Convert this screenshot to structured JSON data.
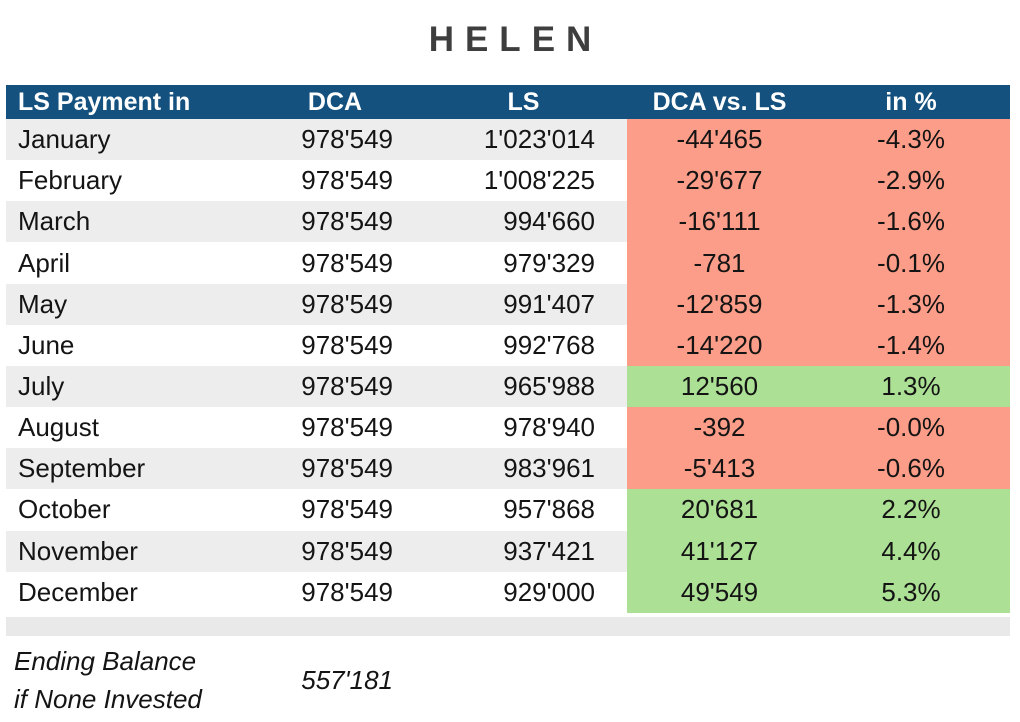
{
  "title": "HELEN",
  "table": {
    "headers": [
      "LS Payment in",
      "DCA",
      "LS",
      "DCA vs. LS",
      "in %"
    ],
    "rows": [
      {
        "month": "January",
        "dca": "978'549",
        "ls": "1'023'014",
        "diff": "-44'465",
        "pct": "-4.3%",
        "status": "negative"
      },
      {
        "month": "February",
        "dca": "978'549",
        "ls": "1'008'225",
        "diff": "-29'677",
        "pct": "-2.9%",
        "status": "negative"
      },
      {
        "month": "March",
        "dca": "978'549",
        "ls": "994'660",
        "diff": "-16'111",
        "pct": "-1.6%",
        "status": "negative"
      },
      {
        "month": "April",
        "dca": "978'549",
        "ls": "979'329",
        "diff": "-781",
        "pct": "-0.1%",
        "status": "negative"
      },
      {
        "month": "May",
        "dca": "978'549",
        "ls": "991'407",
        "diff": "-12'859",
        "pct": "-1.3%",
        "status": "negative"
      },
      {
        "month": "June",
        "dca": "978'549",
        "ls": "992'768",
        "diff": "-14'220",
        "pct": "-1.4%",
        "status": "negative"
      },
      {
        "month": "July",
        "dca": "978'549",
        "ls": "965'988",
        "diff": "12'560",
        "pct": "1.3%",
        "status": "positive"
      },
      {
        "month": "August",
        "dca": "978'549",
        "ls": "978'940",
        "diff": "-392",
        "pct": "-0.0%",
        "status": "negative"
      },
      {
        "month": "September",
        "dca": "978'549",
        "ls": "983'961",
        "diff": "-5'413",
        "pct": "-0.6%",
        "status": "negative"
      },
      {
        "month": "October",
        "dca": "978'549",
        "ls": "957'868",
        "diff": "20'681",
        "pct": "2.2%",
        "status": "positive"
      },
      {
        "month": "November",
        "dca": "978'549",
        "ls": "937'421",
        "diff": "41'127",
        "pct": "4.4%",
        "status": "positive"
      },
      {
        "month": "December",
        "dca": "978'549",
        "ls": "929'000",
        "diff": "49'549",
        "pct": "5.3%",
        "status": "positive"
      }
    ]
  },
  "footer": {
    "label_line1": "Ending Balance",
    "label_line2": "if None Invested",
    "value": "557'181"
  },
  "colors": {
    "header_bg": "#14517E",
    "negative_bg": "#FB9D88",
    "positive_bg": "#ACE095",
    "stripe_bg": "#EDEDED",
    "spacer_bg": "#E9E9E9",
    "title_color": "#3E3E3E"
  },
  "chart_data": {
    "type": "table",
    "title": "HELEN",
    "columns": [
      "LS Payment in",
      "DCA",
      "LS",
      "DCA vs. LS",
      "in %"
    ],
    "rows": [
      [
        "January",
        978549,
        1023014,
        -44465,
        -4.3
      ],
      [
        "February",
        978549,
        1008225,
        -29677,
        -2.9
      ],
      [
        "March",
        978549,
        994660,
        -16111,
        -1.6
      ],
      [
        "April",
        978549,
        979329,
        -781,
        -0.1
      ],
      [
        "May",
        978549,
        991407,
        -12859,
        -1.3
      ],
      [
        "June",
        978549,
        992768,
        -14220,
        -1.4
      ],
      [
        "July",
        978549,
        965988,
        12560,
        1.3
      ],
      [
        "August",
        978549,
        978940,
        -392,
        -0.0
      ],
      [
        "September",
        978549,
        983961,
        -5413,
        -0.6
      ],
      [
        "October",
        978549,
        957868,
        20681,
        2.2
      ],
      [
        "November",
        978549,
        937421,
        41127,
        4.4
      ],
      [
        "December",
        978549,
        929000,
        49549,
        5.3
      ]
    ],
    "ending_balance_if_none_invested": 557181,
    "layout_hints": "negative DCA vs. LS and % cells highlighted salmon red, positive cells green; months columns alternate gray/white stripes"
  }
}
